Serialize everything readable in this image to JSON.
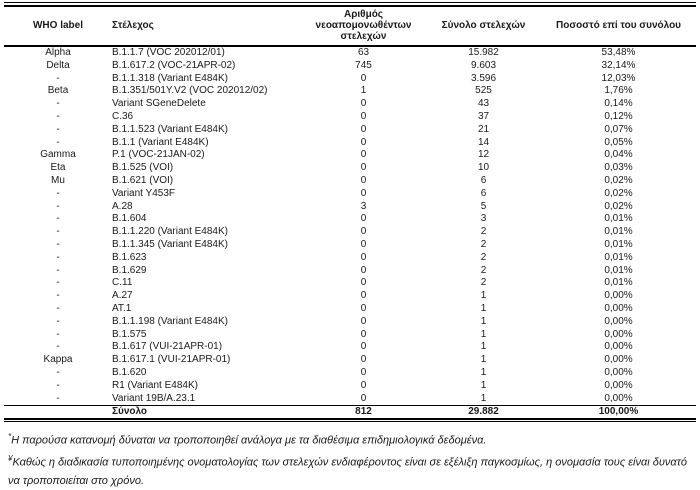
{
  "table": {
    "headers": [
      "WHO label",
      "Στέλεχος",
      "Αριθμός νεοαπομονωθέντων στελεχών",
      "Σύνολο στελεχών",
      "Ποσοστό επί του συνόλου"
    ],
    "rows": [
      [
        "Alpha",
        "B.1.1.7 (VOC 202012/01)",
        "63",
        "15.982",
        "53,48%"
      ],
      [
        "Delta",
        "B.1.617.2 (VOC-21APR-02)",
        "745",
        "9.603",
        "32,14%"
      ],
      [
        "-",
        "B.1.1.318 (Variant E484K)",
        "0",
        "3.596",
        "12,03%"
      ],
      [
        "Beta",
        "B.1.351/501Y.V2 (VOC 202012/02)",
        "1",
        "525",
        "1,76%"
      ],
      [
        "-",
        "Variant SGeneDelete",
        "0",
        "43",
        "0,14%"
      ],
      [
        "-",
        "C.36",
        "0",
        "37",
        "0,12%"
      ],
      [
        "-",
        "B.1.1.523 (Variant E484K)",
        "0",
        "21",
        "0,07%"
      ],
      [
        "-",
        "B.1.1 (Variant E484K)",
        "0",
        "14",
        "0,05%"
      ],
      [
        "Gamma",
        "P.1 (VOC-21JAN-02)",
        "0",
        "12",
        "0,04%"
      ],
      [
        "Eta",
        "B.1.525 (VOI)",
        "0",
        "10",
        "0,03%"
      ],
      [
        "Mu",
        "B.1.621 (VOI)",
        "0",
        "6",
        "0,02%"
      ],
      [
        "-",
        "Variant Y453F",
        "0",
        "6",
        "0,02%"
      ],
      [
        "-",
        "A.28",
        "3",
        "5",
        "0,02%"
      ],
      [
        "-",
        "B.1.604",
        "0",
        "3",
        "0,01%"
      ],
      [
        "-",
        "B.1.1.220 (Variant E484K)",
        "0",
        "2",
        "0,01%"
      ],
      [
        "-",
        "B.1.1.345 (Variant E484K)",
        "0",
        "2",
        "0,01%"
      ],
      [
        "-",
        "B.1.623",
        "0",
        "2",
        "0,01%"
      ],
      [
        "-",
        "B.1.629",
        "0",
        "2",
        "0,01%"
      ],
      [
        "-",
        "C.11",
        "0",
        "2",
        "0,01%"
      ],
      [
        "-",
        "A.27",
        "0",
        "1",
        "0,00%"
      ],
      [
        "-",
        "AT.1",
        "0",
        "1",
        "0,00%"
      ],
      [
        "-",
        "B.1.1.198 (Variant E484K)",
        "0",
        "1",
        "0,00%"
      ],
      [
        "-",
        "B.1.575",
        "0",
        "1",
        "0,00%"
      ],
      [
        "-",
        "B.1.617 (VUI-21APR-01)",
        "0",
        "1",
        "0,00%"
      ],
      [
        "Kappa",
        "B.1.617.1 (VUI-21APR-01)",
        "0",
        "1",
        "0,00%"
      ],
      [
        "-",
        "B.1.620",
        "0",
        "1",
        "0,00%"
      ],
      [
        "-",
        "R1 (Variant E484K)",
        "0",
        "1",
        "0,00%"
      ],
      [
        "-",
        "Variant 19B/A.23.1",
        "0",
        "1",
        "0,00%"
      ]
    ],
    "total_row": {
      "label": "Σύνολο",
      "new_isolates": "812",
      "total_strains": "29.882",
      "percentage": "100,00%"
    }
  },
  "footnotes": [
    {
      "marker": "*",
      "text": "Η παρούσα κατανομή δύναται να τροποποιηθεί ανάλογα με τα διαθέσιμα επιδημιολογικά δεδομένα."
    },
    {
      "marker": "¥",
      "text": "Καθώς η διαδικασία τυποποιημένης ονοματολογίας των στελεχών ενδιαφέροντος είναι σε εξέλιξη παγκοσμίως, η ονομασία τους είναι δυνατό να τροποποιείται στο χρόνο."
    }
  ],
  "colors": {
    "text": "#1a1a1a",
    "border": "#000000",
    "background": "#ffffff"
  }
}
